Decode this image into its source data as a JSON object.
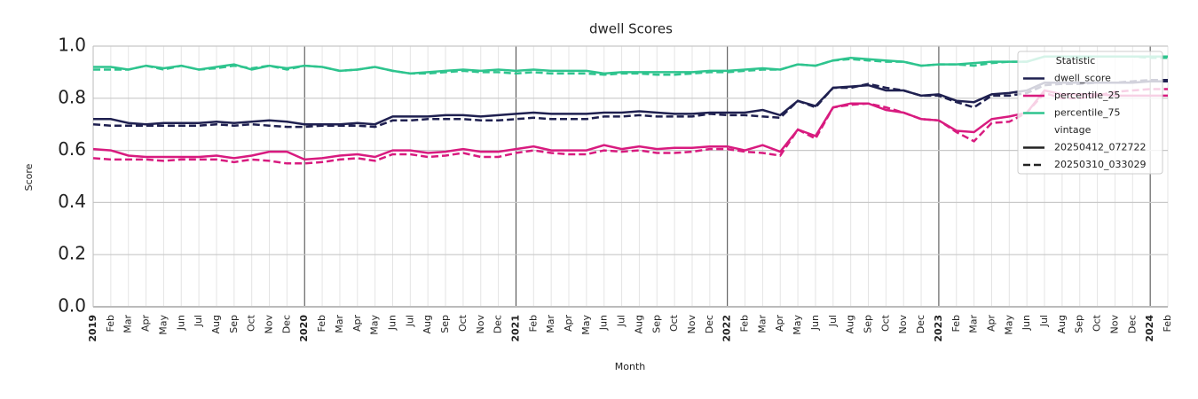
{
  "chart_data": {
    "type": "line",
    "title": "dwell Scores",
    "x_label": "Month",
    "y_label": "Score",
    "categories": [
      "2019",
      "Feb",
      "Mar",
      "Apr",
      "May",
      "Jun",
      "Jul",
      "Aug",
      "Sep",
      "Oct",
      "Nov",
      "Dec",
      "2020",
      "Feb",
      "Mar",
      "Apr",
      "May",
      "Jun",
      "Jul",
      "Aug",
      "Sep",
      "Oct",
      "Nov",
      "Dec",
      "2021",
      "Feb",
      "Mar",
      "Apr",
      "May",
      "Jun",
      "Jul",
      "Aug",
      "Sep",
      "Oct",
      "Nov",
      "Dec",
      "2022",
      "Feb",
      "Mar",
      "Apr",
      "May",
      "Jun",
      "Jul",
      "Aug",
      "Sep",
      "Oct",
      "Nov",
      "Dec",
      "2023",
      "Feb",
      "Mar",
      "Apr",
      "May",
      "Jun",
      "Jul",
      "Aug",
      "Sep",
      "Oct",
      "Nov",
      "Dec",
      "2024",
      "Feb"
    ],
    "ylim": [
      0,
      1
    ],
    "yticks": [
      {
        "value": 0,
        "label": "0.0"
      },
      0.2,
      0.4,
      0.6,
      0.8,
      {
        "value": 1,
        "label": "1.0"
      }
    ],
    "grid": true,
    "legend": {
      "loc": "upper right",
      "titles": [
        "Statistic",
        "vintage"
      ]
    },
    "vintages": [
      {
        "name": "20250412_072722",
        "dash": "solid"
      },
      {
        "name": "20250310_033029",
        "dash": "dashed"
      }
    ],
    "series": [
      {
        "name": "dwell_score",
        "vintage": "20250412_072722",
        "color": "#1f2050",
        "values": [
          0.72,
          0.72,
          0.705,
          0.7,
          0.705,
          0.705,
          0.705,
          0.71,
          0.705,
          0.71,
          0.715,
          0.71,
          0.7,
          0.7,
          0.7,
          0.705,
          0.7,
          0.73,
          0.73,
          0.73,
          0.735,
          0.735,
          0.73,
          0.735,
          0.74,
          0.745,
          0.74,
          0.74,
          0.74,
          0.745,
          0.745,
          0.75,
          0.745,
          0.74,
          0.74,
          0.745,
          0.745,
          0.745,
          0.755,
          0.735,
          0.79,
          0.77,
          0.84,
          0.845,
          0.85,
          0.83,
          0.83,
          0.81,
          0.815,
          0.79,
          0.785,
          0.815,
          0.82,
          0.83,
          0.86,
          0.86,
          0.86,
          0.86,
          0.86,
          0.86,
          0.865,
          0.865
        ]
      },
      {
        "name": "dwell_score",
        "vintage": "20250310_033029",
        "color": "#1f2050",
        "values": [
          0.7,
          0.695,
          0.695,
          0.695,
          0.695,
          0.695,
          0.695,
          0.7,
          0.695,
          0.7,
          0.695,
          0.69,
          0.69,
          0.695,
          0.695,
          0.695,
          0.69,
          0.715,
          0.715,
          0.72,
          0.72,
          0.72,
          0.715,
          0.715,
          0.72,
          0.725,
          0.72,
          0.72,
          0.72,
          0.73,
          0.73,
          0.735,
          0.73,
          0.73,
          0.73,
          0.74,
          0.735,
          0.735,
          0.73,
          0.725,
          0.79,
          0.765,
          0.84,
          0.84,
          0.855,
          0.84,
          0.83,
          0.81,
          0.81,
          0.785,
          0.765,
          0.81,
          0.81,
          0.82,
          0.85,
          0.855,
          0.855,
          0.86,
          0.86,
          0.865,
          0.87,
          0.87
        ]
      },
      {
        "name": "percentile_25",
        "vintage": "20250412_072722",
        "color": "#d81b7f",
        "values": [
          0.605,
          0.6,
          0.58,
          0.575,
          0.575,
          0.575,
          0.575,
          0.58,
          0.57,
          0.58,
          0.595,
          0.595,
          0.565,
          0.57,
          0.58,
          0.585,
          0.575,
          0.6,
          0.6,
          0.59,
          0.595,
          0.605,
          0.595,
          0.595,
          0.605,
          0.615,
          0.6,
          0.6,
          0.6,
          0.62,
          0.605,
          0.615,
          0.605,
          0.61,
          0.61,
          0.615,
          0.615,
          0.6,
          0.62,
          0.595,
          0.68,
          0.655,
          0.765,
          0.78,
          0.78,
          0.755,
          0.745,
          0.72,
          0.715,
          0.675,
          0.67,
          0.72,
          0.73,
          0.745,
          0.83,
          0.815,
          0.815,
          0.815,
          0.81,
          0.81,
          0.81,
          0.81
        ]
      },
      {
        "name": "percentile_25",
        "vintage": "20250310_033029",
        "color": "#d81b7f",
        "values": [
          0.57,
          0.565,
          0.565,
          0.565,
          0.56,
          0.565,
          0.565,
          0.565,
          0.555,
          0.565,
          0.56,
          0.55,
          0.55,
          0.555,
          0.565,
          0.57,
          0.56,
          0.585,
          0.585,
          0.575,
          0.58,
          0.59,
          0.575,
          0.575,
          0.59,
          0.6,
          0.59,
          0.585,
          0.585,
          0.6,
          0.595,
          0.6,
          0.59,
          0.59,
          0.595,
          0.605,
          0.605,
          0.595,
          0.59,
          0.58,
          0.68,
          0.645,
          0.765,
          0.775,
          0.78,
          0.765,
          0.745,
          0.72,
          0.715,
          0.67,
          0.635,
          0.705,
          0.71,
          0.745,
          0.82,
          0.8,
          0.8,
          0.81,
          0.825,
          0.83,
          0.835,
          0.835
        ]
      },
      {
        "name": "percentile_75",
        "vintage": "20250412_072722",
        "color": "#2ec48e",
        "values": [
          0.92,
          0.92,
          0.91,
          0.925,
          0.915,
          0.925,
          0.91,
          0.92,
          0.93,
          0.91,
          0.925,
          0.915,
          0.925,
          0.92,
          0.905,
          0.91,
          0.92,
          0.905,
          0.895,
          0.9,
          0.905,
          0.91,
          0.905,
          0.91,
          0.905,
          0.91,
          0.905,
          0.905,
          0.905,
          0.895,
          0.9,
          0.9,
          0.9,
          0.9,
          0.9,
          0.905,
          0.905,
          0.91,
          0.915,
          0.91,
          0.93,
          0.925,
          0.945,
          0.955,
          0.95,
          0.945,
          0.94,
          0.925,
          0.93,
          0.93,
          0.935,
          0.94,
          0.94,
          0.94,
          0.96,
          0.96,
          0.96,
          0.96,
          0.96,
          0.96,
          0.96,
          0.96
        ]
      },
      {
        "name": "percentile_75",
        "vintage": "20250310_033029",
        "color": "#2ec48e",
        "values": [
          0.91,
          0.91,
          0.91,
          0.925,
          0.91,
          0.925,
          0.91,
          0.915,
          0.925,
          0.915,
          0.925,
          0.91,
          0.925,
          0.92,
          0.905,
          0.91,
          0.92,
          0.905,
          0.895,
          0.895,
          0.9,
          0.905,
          0.9,
          0.9,
          0.895,
          0.9,
          0.895,
          0.895,
          0.895,
          0.89,
          0.895,
          0.895,
          0.89,
          0.89,
          0.895,
          0.9,
          0.9,
          0.905,
          0.91,
          0.91,
          0.93,
          0.925,
          0.945,
          0.95,
          0.945,
          0.94,
          0.94,
          0.925,
          0.93,
          0.93,
          0.925,
          0.935,
          0.94,
          0.94,
          0.96,
          0.96,
          0.955,
          0.96,
          0.96,
          0.96,
          0.955,
          0.955
        ]
      }
    ]
  }
}
